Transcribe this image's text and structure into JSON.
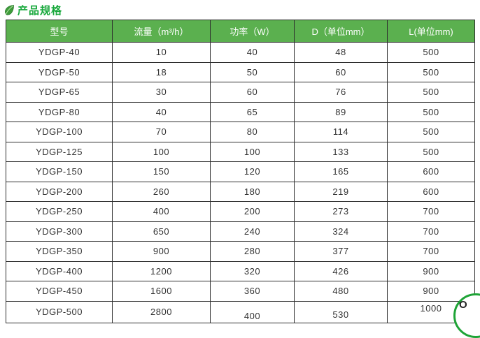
{
  "page": {
    "title": "产品规格"
  },
  "colors": {
    "header_bg": "#5bb04f",
    "title_green": "#17a83b",
    "border": "#2e2e2e",
    "badge_green": "#1fa437"
  },
  "icons": {
    "leaf": "leaf-icon"
  },
  "table": {
    "columns": [
      {
        "key": "model",
        "label": "型号"
      },
      {
        "key": "flow",
        "label": "流量（m³/h）"
      },
      {
        "key": "power",
        "label": "功率（W）"
      },
      {
        "key": "d",
        "label": "D（单位mm）"
      },
      {
        "key": "l",
        "label": "L(单位mm)"
      }
    ],
    "rows": [
      {
        "model": "YDGP-40",
        "flow": "10",
        "power": "40",
        "d": "48",
        "l": "500"
      },
      {
        "model": "YDGP-50",
        "flow": "18",
        "power": "50",
        "d": "60",
        "l": "500"
      },
      {
        "model": "YDGP-65",
        "flow": "30",
        "power": "60",
        "d": "76",
        "l": "500"
      },
      {
        "model": "YDGP-80",
        "flow": "40",
        "power": "65",
        "d": "89",
        "l": "500"
      },
      {
        "model": "YDGP-100",
        "flow": "70",
        "power": "80",
        "d": "114",
        "l": "500"
      },
      {
        "model": "YDGP-125",
        "flow": "100",
        "power": "100",
        "d": "133",
        "l": "500"
      },
      {
        "model": "YDGP-150",
        "flow": "150",
        "power": "120",
        "d": "165",
        "l": "600"
      },
      {
        "model": "YDGP-200",
        "flow": "260",
        "power": "180",
        "d": "219",
        "l": "600"
      },
      {
        "model": "YDGP-250",
        "flow": "400",
        "power": "200",
        "d": "273",
        "l": "700"
      },
      {
        "model": "YDGP-300",
        "flow": "650",
        "power": "240",
        "d": "324",
        "l": "700"
      },
      {
        "model": "YDGP-350",
        "flow": "900",
        "power": "280",
        "d": "377",
        "l": "700"
      },
      {
        "model": "YDGP-400",
        "flow": "1200",
        "power": "320",
        "d": "426",
        "l": "900"
      },
      {
        "model": "YDGP-450",
        "flow": "1600",
        "power": "360",
        "d": "480",
        "l": "900"
      },
      {
        "model": "YDGP-500",
        "flow": "2800",
        "power": "400",
        "d": "530",
        "l": "1000"
      }
    ]
  },
  "badge": {
    "glyph": "O"
  }
}
